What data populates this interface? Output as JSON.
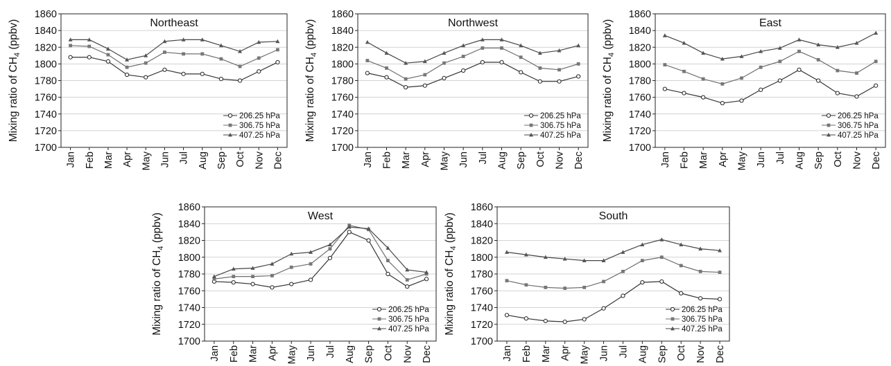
{
  "ylabel_text": "Mixing ratio of CH",
  "ylabel_sub": "4",
  "ylabel_unit": " (ppbv)",
  "chart_data": [
    {
      "type": "line",
      "title": "Northeast",
      "categories": [
        "Jan",
        "Feb",
        "Mar",
        "Apr",
        "May",
        "Jun",
        "Jul",
        "Aug",
        "Sep",
        "Oct",
        "Nov",
        "Dec"
      ],
      "ylim": [
        1700,
        1860
      ],
      "yticks": [
        1700,
        1720,
        1740,
        1760,
        1780,
        1800,
        1820,
        1840,
        1860
      ],
      "grid": true,
      "legend": "bottom-right",
      "series": [
        {
          "name": "206.25 hPa",
          "marker": "circle",
          "values": [
            1808,
            1808,
            1803,
            1787,
            1784,
            1793,
            1788,
            1788,
            1782,
            1780,
            1791,
            1802
          ]
        },
        {
          "name": "306.75 hPa",
          "marker": "square",
          "values": [
            1822,
            1821,
            1811,
            1796,
            1801,
            1814,
            1812,
            1812,
            1806,
            1797,
            1807,
            1817
          ]
        },
        {
          "name": "407.25 hPa",
          "marker": "triangle",
          "values": [
            1829,
            1829,
            1818,
            1805,
            1810,
            1827,
            1829,
            1829,
            1822,
            1815,
            1826,
            1827
          ]
        }
      ]
    },
    {
      "type": "line",
      "title": "Northwest",
      "categories": [
        "Jan",
        "Feb",
        "Mar",
        "Apr",
        "May",
        "Jun",
        "Jul",
        "Aug",
        "Sep",
        "Oct",
        "Nov",
        "Dec"
      ],
      "ylim": [
        1700,
        1860
      ],
      "yticks": [
        1700,
        1720,
        1740,
        1760,
        1780,
        1800,
        1820,
        1840,
        1860
      ],
      "grid": true,
      "legend": "bottom-right",
      "series": [
        {
          "name": "206.25 hPa",
          "marker": "circle",
          "values": [
            1789,
            1784,
            1772,
            1774,
            1783,
            1792,
            1802,
            1802,
            1790,
            1779,
            1779,
            1785
          ]
        },
        {
          "name": "306.75 hPa",
          "marker": "square",
          "values": [
            1804,
            1795,
            1782,
            1787,
            1801,
            1809,
            1819,
            1819,
            1808,
            1795,
            1793,
            1800
          ]
        },
        {
          "name": "407.25 hPa",
          "marker": "triangle",
          "values": [
            1826,
            1813,
            1801,
            1803,
            1813,
            1822,
            1829,
            1829,
            1822,
            1813,
            1816,
            1822
          ]
        }
      ]
    },
    {
      "type": "line",
      "title": "East",
      "categories": [
        "Jan",
        "Feb",
        "Mar",
        "Apr",
        "May",
        "Jun",
        "Jul",
        "Aug",
        "Sep",
        "Oct",
        "Nov",
        "Dec"
      ],
      "ylim": [
        1700,
        1860
      ],
      "yticks": [
        1700,
        1720,
        1740,
        1760,
        1780,
        1800,
        1820,
        1840,
        1860
      ],
      "grid": true,
      "legend": "bottom-right",
      "series": [
        {
          "name": "206.25 hPa",
          "marker": "circle",
          "values": [
            1770,
            1765,
            1760,
            1753,
            1756,
            1769,
            1780,
            1793,
            1780,
            1765,
            1761,
            1774
          ]
        },
        {
          "name": "306.75 hPa",
          "marker": "square",
          "values": [
            1799,
            1791,
            1782,
            1776,
            1783,
            1796,
            1803,
            1815,
            1805,
            1792,
            1789,
            1803
          ]
        },
        {
          "name": "407.25 hPa",
          "marker": "triangle",
          "values": [
            1834,
            1825,
            1813,
            1806,
            1809,
            1815,
            1819,
            1829,
            1823,
            1820,
            1825,
            1837
          ]
        }
      ]
    },
    {
      "type": "line",
      "title": "West",
      "categories": [
        "Jan",
        "Feb",
        "Mar",
        "Apr",
        "May",
        "Jun",
        "Jul",
        "Aug",
        "Sep",
        "Oct",
        "Nov",
        "Dec"
      ],
      "ylim": [
        1700,
        1860
      ],
      "yticks": [
        1700,
        1720,
        1740,
        1760,
        1780,
        1800,
        1820,
        1840,
        1860
      ],
      "grid": true,
      "legend": "bottom-right",
      "series": [
        {
          "name": "206.25 hPa",
          "marker": "circle",
          "values": [
            1771,
            1770,
            1768,
            1764,
            1768,
            1773,
            1799,
            1830,
            1820,
            1780,
            1765,
            1774
          ]
        },
        {
          "name": "306.75 hPa",
          "marker": "square",
          "values": [
            1774,
            1777,
            1777,
            1778,
            1788,
            1792,
            1810,
            1838,
            1833,
            1796,
            1773,
            1780
          ]
        },
        {
          "name": "407.25 hPa",
          "marker": "triangle",
          "values": [
            1777,
            1786,
            1787,
            1792,
            1804,
            1806,
            1815,
            1836,
            1834,
            1811,
            1785,
            1782
          ]
        }
      ]
    },
    {
      "type": "line",
      "title": "South",
      "categories": [
        "Jan",
        "Feb",
        "Mar",
        "Apr",
        "May",
        "Jun",
        "Jul",
        "Aug",
        "Sep",
        "Oct",
        "Nov",
        "Dec"
      ],
      "ylim": [
        1700,
        1860
      ],
      "yticks": [
        1700,
        1720,
        1740,
        1760,
        1780,
        1800,
        1820,
        1840,
        1860
      ],
      "grid": true,
      "legend": "bottom-right",
      "series": [
        {
          "name": "206.25 hPa",
          "marker": "circle",
          "values": [
            1731,
            1727,
            1724,
            1723,
            1726,
            1739,
            1754,
            1770,
            1771,
            1757,
            1751,
            1750
          ]
        },
        {
          "name": "306.75 hPa",
          "marker": "square",
          "values": [
            1772,
            1767,
            1764,
            1763,
            1764,
            1771,
            1783,
            1796,
            1800,
            1790,
            1783,
            1782
          ]
        },
        {
          "name": "407.25 hPa",
          "marker": "triangle",
          "values": [
            1806,
            1803,
            1800,
            1798,
            1796,
            1796,
            1806,
            1815,
            1821,
            1815,
            1810,
            1808
          ]
        }
      ]
    }
  ]
}
